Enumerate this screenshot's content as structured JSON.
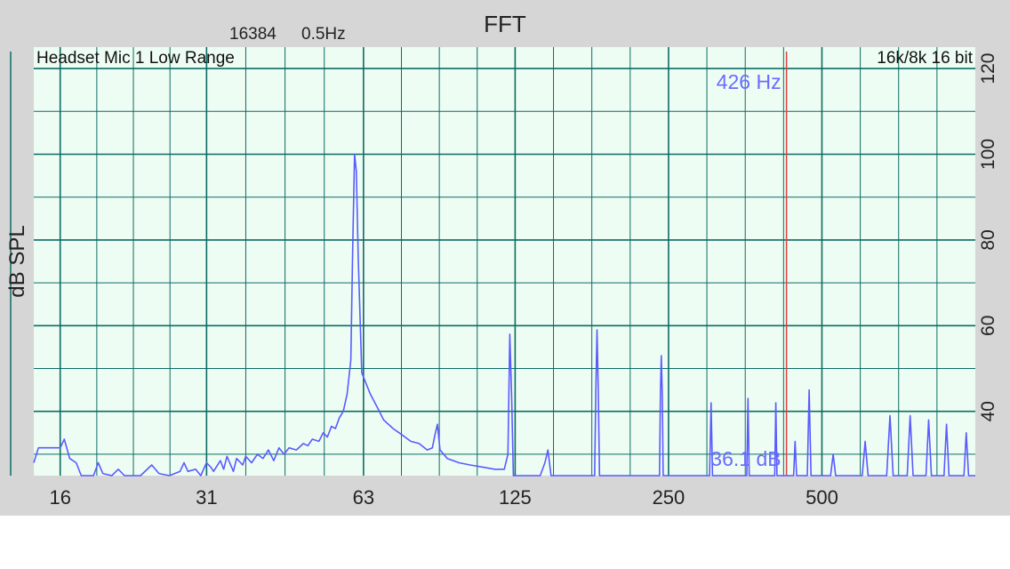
{
  "header": {
    "title": "FFT",
    "fft_size": "16384",
    "resolution": "0.5Hz"
  },
  "labels": {
    "input": "Headset Mic 1 Low Range",
    "format": "16k/8k 16 bit",
    "cursor_freq": "426 Hz",
    "cursor_level": "36.1 dB"
  },
  "colors": {
    "background": "#d6d6d6",
    "plot_bg": "#eefdf3",
    "grid": "#0b6b64",
    "trace": "#5a5aff",
    "cursor": "#e04040",
    "readout": "#6b6bff"
  },
  "chart_data": {
    "type": "line",
    "title": "FFT",
    "xlabel": "",
    "ylabel": "dB SPL",
    "x_scale": "log",
    "x_ticks": [
      16,
      31,
      63,
      125,
      250,
      500
    ],
    "x_tick_labels": [
      "16",
      "31",
      "63",
      "125",
      "250",
      "500"
    ],
    "xlim": [
      14.2,
      1000
    ],
    "y_ticks": [
      40,
      60,
      80,
      100,
      120
    ],
    "y_tick_labels": [
      "40",
      "60",
      "80",
      "100",
      "120"
    ],
    "ylim": [
      25,
      125
    ],
    "grid": true,
    "cursor": {
      "x": 426,
      "label": "426 Hz",
      "level_label": "36.1 dB"
    },
    "series": [
      {
        "values": [
          [
            14.2,
            28
          ],
          [
            14.5,
            31.5
          ],
          [
            16,
            31.5
          ],
          [
            16.3,
            33.5
          ],
          [
            16.7,
            29
          ],
          [
            17.2,
            28
          ],
          [
            17.6,
            25
          ],
          [
            18.6,
            25
          ],
          [
            19,
            28
          ],
          [
            19.4,
            25.5
          ],
          [
            20.2,
            25
          ],
          [
            20.8,
            26.5
          ],
          [
            21.4,
            25
          ],
          [
            23,
            25
          ],
          [
            24.2,
            27.5
          ],
          [
            25,
            25.5
          ],
          [
            26.2,
            25
          ],
          [
            27.5,
            26
          ],
          [
            28,
            28
          ],
          [
            28.5,
            26
          ],
          [
            29.5,
            26.5
          ],
          [
            30.2,
            25
          ],
          [
            31,
            28
          ],
          [
            31.6,
            27
          ],
          [
            32,
            26
          ],
          [
            33,
            28.5
          ],
          [
            33.5,
            26.5
          ],
          [
            34,
            29.5
          ],
          [
            35,
            26
          ],
          [
            35.5,
            29
          ],
          [
            36.5,
            27.5
          ],
          [
            37,
            29.5
          ],
          [
            38,
            28
          ],
          [
            39,
            30
          ],
          [
            40,
            29
          ],
          [
            41,
            31
          ],
          [
            42,
            28.5
          ],
          [
            43,
            31.5
          ],
          [
            44,
            30
          ],
          [
            45,
            31.5
          ],
          [
            46.5,
            31
          ],
          [
            48,
            32.5
          ],
          [
            49,
            32
          ],
          [
            50,
            33.5
          ],
          [
            51.5,
            33
          ],
          [
            52.5,
            35
          ],
          [
            53.5,
            34
          ],
          [
            54.5,
            36.5
          ],
          [
            55.5,
            36
          ],
          [
            56.5,
            38.5
          ],
          [
            57.5,
            40
          ],
          [
            58.5,
            44
          ],
          [
            59.5,
            52
          ],
          [
            60,
            78
          ],
          [
            60.5,
            100
          ],
          [
            61,
            96
          ],
          [
            61.5,
            76
          ],
          [
            62.5,
            49
          ],
          [
            63.5,
            47
          ],
          [
            65,
            44
          ],
          [
            67,
            41
          ],
          [
            69,
            38
          ],
          [
            72,
            36
          ],
          [
            75,
            34.5
          ],
          [
            78,
            33
          ],
          [
            81,
            32.5
          ],
          [
            84,
            31
          ],
          [
            86,
            31.5
          ],
          [
            87,
            34.5
          ],
          [
            88,
            37
          ],
          [
            89,
            31
          ],
          [
            92,
            29
          ],
          [
            97,
            28
          ],
          [
            102,
            27.5
          ],
          [
            108,
            27
          ],
          [
            114,
            26.5
          ],
          [
            119,
            26.5
          ],
          [
            121,
            30
          ],
          [
            122,
            58
          ],
          [
            123,
            44
          ],
          [
            124,
            25
          ],
          [
            132,
            25
          ],
          [
            140,
            25
          ],
          [
            143,
            28
          ],
          [
            145,
            31
          ],
          [
            147,
            25
          ],
          [
            155,
            25
          ],
          [
            179,
            25
          ],
          [
            180,
            45
          ],
          [
            181,
            59
          ],
          [
            182,
            45
          ],
          [
            183,
            25
          ],
          [
            240,
            25
          ],
          [
            241,
            44
          ],
          [
            242,
            53
          ],
          [
            243,
            44
          ],
          [
            244,
            25
          ],
          [
            301,
            25
          ],
          [
            303,
            42
          ],
          [
            305,
            25
          ],
          [
            356,
            25
          ],
          [
            358,
            43
          ],
          [
            360,
            25
          ],
          [
            404,
            25
          ],
          [
            406,
            42
          ],
          [
            408,
            25
          ],
          [
            440,
            25
          ],
          [
            443,
            33
          ],
          [
            446,
            25
          ],
          [
            468,
            25
          ],
          [
            472,
            45
          ],
          [
            476,
            25
          ],
          [
            520,
            25
          ],
          [
            526,
            30
          ],
          [
            532,
            25
          ],
          [
            600,
            25
          ],
          [
            608,
            33
          ],
          [
            616,
            25
          ],
          [
            670,
            25
          ],
          [
            680,
            39
          ],
          [
            690,
            25
          ],
          [
            735,
            25
          ],
          [
            745,
            39
          ],
          [
            755,
            25
          ],
          [
            800,
            25
          ],
          [
            810,
            38
          ],
          [
            820,
            25
          ],
          [
            868,
            25
          ],
          [
            878,
            37
          ],
          [
            888,
            25
          ],
          [
            950,
            25
          ],
          [
            960,
            35
          ],
          [
            970,
            25
          ],
          [
            1000,
            25
          ]
        ]
      }
    ]
  }
}
